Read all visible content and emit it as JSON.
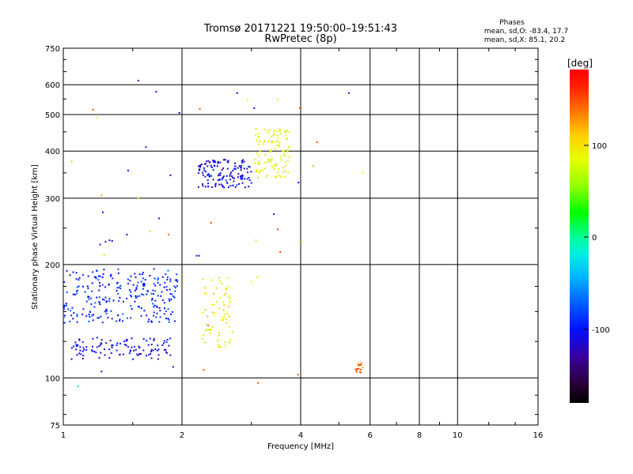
{
  "title": {
    "line1": "Tromsø 20171221 19:50:00–19:51:43",
    "line2": "RwPretec (8p)"
  },
  "stats": {
    "heading": "Phases",
    "line_o": "mean, sd,O: -83.4, 17.7",
    "line_x": "mean, sd,X: 85.1, 20.2"
  },
  "chart_data": {
    "type": "scatter",
    "xlabel": "Frequency [MHz]",
    "ylabel": "Stationary phase Virtual Height [km]",
    "x_scale": "log",
    "y_scale": "log",
    "xlim": [
      1,
      16
    ],
    "ylim": [
      75,
      750
    ],
    "x_ticks": [
      "1",
      "2",
      "4",
      "6",
      "8",
      "10",
      "16"
    ],
    "y_ticks": [
      "75",
      "100",
      "200",
      "300",
      "400",
      "500",
      "600",
      "750"
    ],
    "grid": true,
    "colorbar": {
      "label": "[deg]",
      "range": [
        -180,
        180
      ],
      "ticks": [
        "100",
        "0",
        "-100"
      ]
    },
    "clusters": [
      {
        "name": "O-trace low (cyan/blue)",
        "x_range": [
          1.0,
          1.95
        ],
        "y_range": [
          140,
          195
        ],
        "phase_deg": -95,
        "count": 260
      },
      {
        "name": "O-trace lower band",
        "x_range": [
          1.05,
          1.9
        ],
        "y_range": [
          112,
          128
        ],
        "phase_deg": -110,
        "count": 110
      },
      {
        "name": "O-trace F2 (blue)",
        "x_range": [
          2.2,
          3.0
        ],
        "y_range": [
          320,
          380
        ],
        "phase_deg": -110,
        "count": 140
      },
      {
        "name": "X-trace F2 (yellow)",
        "x_range": [
          3.05,
          3.75
        ],
        "y_range": [
          340,
          460
        ],
        "phase_deg": 90,
        "count": 110
      },
      {
        "name": "X-trace low (yellow/orange)",
        "x_range": [
          2.25,
          2.7
        ],
        "y_range": [
          120,
          185
        ],
        "phase_deg": 95,
        "count": 70
      },
      {
        "name": "Sporadic (orange)",
        "x_range": [
          5.5,
          5.75
        ],
        "y_range": [
          103,
          110
        ],
        "phase_deg": 140,
        "count": 14
      }
    ],
    "scattered_points": [
      {
        "x": 1.55,
        "y": 615,
        "phase": -110
      },
      {
        "x": 1.72,
        "y": 575,
        "phase": -105
      },
      {
        "x": 1.19,
        "y": 515,
        "phase": 150
      },
      {
        "x": 1.22,
        "y": 490,
        "phase": 95
      },
      {
        "x": 1.62,
        "y": 410,
        "phase": -115
      },
      {
        "x": 1.05,
        "y": 375,
        "phase": 60
      },
      {
        "x": 1.46,
        "y": 355,
        "phase": -100
      },
      {
        "x": 1.87,
        "y": 345,
        "phase": -105
      },
      {
        "x": 1.97,
        "y": 505,
        "phase": -110
      },
      {
        "x": 1.25,
        "y": 305,
        "phase": 120
      },
      {
        "x": 1.26,
        "y": 275,
        "phase": -110
      },
      {
        "x": 1.55,
        "y": 300,
        "phase": 95
      },
      {
        "x": 1.66,
        "y": 245,
        "phase": 110
      },
      {
        "x": 1.45,
        "y": 240,
        "phase": -100
      },
      {
        "x": 1.75,
        "y": 265,
        "phase": -110
      },
      {
        "x": 1.85,
        "y": 240,
        "phase": 140
      },
      {
        "x": 1.28,
        "y": 230,
        "phase": -100
      },
      {
        "x": 1.31,
        "y": 232,
        "phase": -105
      },
      {
        "x": 1.33,
        "y": 231,
        "phase": -110
      },
      {
        "x": 1.24,
        "y": 226,
        "phase": -100
      },
      {
        "x": 1.27,
        "y": 212,
        "phase": 60
      },
      {
        "x": 2.18,
        "y": 211,
        "phase": -105
      },
      {
        "x": 2.21,
        "y": 211,
        "phase": -110
      },
      {
        "x": 2.37,
        "y": 258,
        "phase": 150
      },
      {
        "x": 2.76,
        "y": 570,
        "phase": -110
      },
      {
        "x": 2.93,
        "y": 545,
        "phase": 90
      },
      {
        "x": 3.05,
        "y": 520,
        "phase": -110
      },
      {
        "x": 2.22,
        "y": 518,
        "phase": 150
      },
      {
        "x": 3.5,
        "y": 548,
        "phase": 100
      },
      {
        "x": 3.98,
        "y": 520,
        "phase": 150
      },
      {
        "x": 4.4,
        "y": 422,
        "phase": 150
      },
      {
        "x": 4.3,
        "y": 365,
        "phase": 120
      },
      {
        "x": 5.3,
        "y": 570,
        "phase": -110
      },
      {
        "x": 5.75,
        "y": 350,
        "phase": 90
      },
      {
        "x": 3.95,
        "y": 330,
        "phase": -100
      },
      {
        "x": 3.42,
        "y": 272,
        "phase": -100
      },
      {
        "x": 3.5,
        "y": 248,
        "phase": 150
      },
      {
        "x": 3.08,
        "y": 232,
        "phase": 100
      },
      {
        "x": 3.55,
        "y": 216,
        "phase": 150
      },
      {
        "x": 3.98,
        "y": 230,
        "phase": 90
      },
      {
        "x": 3.0,
        "y": 180,
        "phase": 90
      },
      {
        "x": 3.1,
        "y": 185,
        "phase": 95
      },
      {
        "x": 2.33,
        "y": 138,
        "phase": 150
      },
      {
        "x": 2.27,
        "y": 105,
        "phase": 150
      },
      {
        "x": 3.12,
        "y": 97,
        "phase": 150
      },
      {
        "x": 3.94,
        "y": 102,
        "phase": 150
      },
      {
        "x": 1.09,
        "y": 95,
        "phase": -30
      },
      {
        "x": 1.25,
        "y": 104,
        "phase": -105
      },
      {
        "x": 1.9,
        "y": 107,
        "phase": -110
      }
    ]
  }
}
